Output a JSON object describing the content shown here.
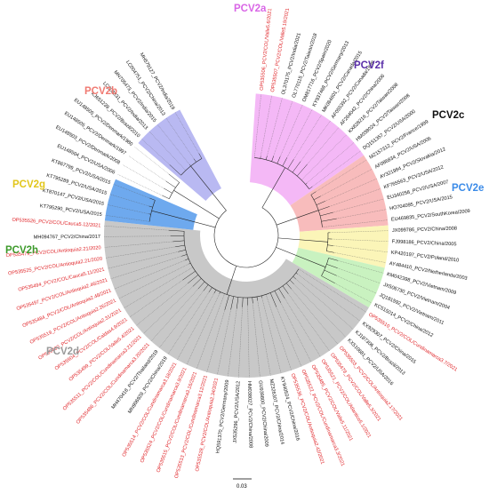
{
  "colors": {
    "PCV2a": "#f4b8f6",
    "PCV2f": "#b9b9f2",
    "PCV2c": "#ffffff",
    "PCV2e": "#6ea9ee",
    "PCV2d": "#c8c8c8",
    "PCV2h": "#c9f2c0",
    "PCV2g": "#fbf5b8",
    "PCV2b": "#f8bcbc",
    "highlight_text": "#e0262a",
    "normal_text": "#111111"
  },
  "clades": [
    {
      "id": "PCV2a",
      "label": "PCV2a",
      "color": "#d966e6"
    },
    {
      "id": "PCV2f",
      "label": "PCV2f",
      "color": "#5a2fa8"
    },
    {
      "id": "PCV2c",
      "label": "PCV2c",
      "color": "#111111"
    },
    {
      "id": "PCV2e",
      "label": "PCV2e",
      "color": "#3b8be8"
    },
    {
      "id": "PCV2d",
      "label": "PCV2d",
      "color": "#9a9a9a"
    },
    {
      "id": "PCV2h",
      "label": "PCV2h",
      "color": "#3c9a2a"
    },
    {
      "id": "PCV2g",
      "label": "PCV2g",
      "color": "#e2c61a"
    },
    {
      "id": "PCV2b",
      "label": "PCV2b",
      "color": "#f07a72"
    }
  ],
  "leaves": [
    {
      "name": "OP535506_PCV2/COL/Valle5.6/2021",
      "clade": "PCV2a",
      "red": true
    },
    {
      "name": "OP535507_PCV2/COL/Valle5.19/2021",
      "clade": "PCV2a",
      "red": true
    },
    {
      "name": "OL370175_PCV2/India/2021",
      "clade": "PCV2a",
      "red": false
    },
    {
      "name": "OL770115_PCV2/Taiwan/2018",
      "clade": "PCV2a",
      "red": false
    },
    {
      "name": "OM817716_PCV2/Spain/2020",
      "clade": "PCV2a",
      "red": false
    },
    {
      "name": "KY937468_PCV2/Germany/2013",
      "clade": "PCV2a",
      "red": false
    },
    {
      "name": "MK084601_PCV2/Canada/2015",
      "clade": "PCV2a",
      "red": false
    },
    {
      "name": "AF055392_PCV2/Canada/1998",
      "clade": "PCV2a",
      "red": false
    },
    {
      "name": "AF264042_PCV2/China/2006",
      "clade": "PCV2a",
      "red": false
    },
    {
      "name": "KX828216_PCV2/Taiwan/2008",
      "clade": "PCV2a",
      "red": false
    },
    {
      "name": "HM038024_PCV2/Taiwan/2008",
      "clade": "PCV2a",
      "red": false
    },
    {
      "name": "DQ151357_PCV2/USA/2000",
      "clade": "PCV2a",
      "red": false
    },
    {
      "name": "MZ157312_PCV2/France/1999",
      "clade": "PCV2b",
      "red": false
    },
    {
      "name": "AF086834_PCV2/USA/2006",
      "clade": "PCV2b",
      "red": false
    },
    {
      "name": "AY321984_PCV2/Slovakia/2012",
      "clade": "PCV2b",
      "red": false
    },
    {
      "name": "KF765563_PCV2/USA/2012",
      "clade": "PCV2b",
      "red": false
    },
    {
      "name": "EU340258_PCV2/USA/2007",
      "clade": "PCV2b",
      "red": false
    },
    {
      "name": "HO704095_PCV2/USA/2015",
      "clade": "PCV2b",
      "red": false
    },
    {
      "name": "EU469835_PCV2/SouthKorea/2009",
      "clade": "PCV2b",
      "red": false
    },
    {
      "name": "JX099786_PCV2/China/2008",
      "clade": "PCV2g",
      "red": false
    },
    {
      "name": "FJ998186_PCV2/China/2005",
      "clade": "PCV2g",
      "red": false
    },
    {
      "name": "KP420197_PCV2/Poland/2010",
      "clade": "PCV2g",
      "red": false
    },
    {
      "name": "AY484410_PCV2/Netherlands/2003",
      "clade": "PCV2g",
      "red": false
    },
    {
      "name": "KM042398_PCV2/Vietnam/2009",
      "clade": "PCV2h",
      "red": false
    },
    {
      "name": "JX506730_PCV2/Vietnam/2004",
      "clade": "PCV2h",
      "red": false
    },
    {
      "name": "JQ181592_PCV2/Vietnam/2011",
      "clade": "PCV2h",
      "red": false
    },
    {
      "name": "KC515014_PCV2/China/2012",
      "clade": "PCV2h",
      "red": false
    },
    {
      "name": "OP535510_PCV2/COL/Cundinamarca3.7/2021",
      "clade": "PCV2d",
      "red": true
    },
    {
      "name": "KX929307_PCV2/China/2015",
      "clade": "PCV2d",
      "red": false
    },
    {
      "name": "KJ187306_PCV2/Brazil/2013",
      "clade": "PCV2d",
      "red": false
    },
    {
      "name": "KX510681_PCV2/USA/2016",
      "clade": "PCV2d",
      "red": false
    },
    {
      "name": "OP535503_PCV2/COL/Antioquia2.17/2021",
      "clade": "PCV2d",
      "red": true
    },
    {
      "name": "OP535478_PCV2/COL/Valle5.3/2021",
      "clade": "PCV2d",
      "red": true
    },
    {
      "name": "OP535521_PCV2/COL/Atlantico5.1/2021",
      "clade": "PCV2d",
      "red": true
    },
    {
      "name": "OP535485_PCV2/COL/Valle5.11/2021",
      "clade": "PCV2d",
      "red": true
    },
    {
      "name": "OP535522_PCV2/COL/Cundinamarca3.3/2021",
      "clade": "PCV2d",
      "red": true
    },
    {
      "name": "OP535536_PCV2/COL/Antioquia2.42/2021",
      "clade": "PCV2d",
      "red": true
    },
    {
      "name": "KY940524_PCV2/China/2016",
      "clade": "PCV2d",
      "red": false
    },
    {
      "name": "MZ326307_PCV2/China/2014",
      "clade": "PCV2d",
      "red": false
    },
    {
      "name": "GU939800_PCV2/China/2009",
      "clade": "PCV2d",
      "red": false
    },
    {
      "name": "HM038027_PCV2/China/2008",
      "clade": "PCV2d",
      "red": false
    },
    {
      "name": "JX535296_PCV2/USA/2012",
      "clade": "PCV2d",
      "red": false
    },
    {
      "name": "HQ591370_PCV2/Germany/2009",
      "clade": "PCV2d",
      "red": false
    },
    {
      "name": "OP535528_PCV2/COL/Antioquia2.34/2021",
      "clade": "PCV2d",
      "red": true
    },
    {
      "name": "OP535513_PCV2/COL/Cundinamarca3.12/2021",
      "clade": "PCV2d",
      "red": true
    },
    {
      "name": "OP535515_PCV2/COL/Cundinamarca3.16/2021",
      "clade": "PCV2d",
      "red": true
    },
    {
      "name": "OP535524_PCV2/COL/Cundinamarca3.9/2021",
      "clade": "PCV2d",
      "red": true
    },
    {
      "name": "OP535514_PCV2/COL/Cundinamarca3.18/2021",
      "clade": "PCV2d",
      "red": true
    },
    {
      "name": "MN906928_PCV2/China/2019",
      "clade": "PCV2d",
      "red": false
    },
    {
      "name": "MH470418_PCV2/Thailand/2019",
      "clade": "PCV2d",
      "red": false
    },
    {
      "name": "OP535486_PCV2/COL/Cundinamarca3.20/2021",
      "clade": "PCV2d",
      "red": true
    },
    {
      "name": "OP535511_PCV2/COL/Cundinamarca3.21/2021",
      "clade": "PCV2d",
      "red": true
    },
    {
      "name": "OP535499_PCV2/COL/Valle5.4/2021",
      "clade": "PCV2d",
      "red": true
    },
    {
      "name": "OP535504_PCV2/COL/Caldas4.9/2021",
      "clade": "PCV2d",
      "red": true
    },
    {
      "name": "OP535480_PCV2/COL/Antioquia2.31/2021",
      "clade": "PCV2d",
      "red": true
    },
    {
      "name": "OP535519_PCV2/COL/Antioquia2.26/2021",
      "clade": "PCV2d",
      "red": true
    },
    {
      "name": "OP535484_PCV2/COL/Antioquia2.48/2021",
      "clade": "PCV2d",
      "red": true
    },
    {
      "name": "OP535497_PCV2/COL/Antioquia2.46/2021",
      "clade": "PCV2d",
      "red": true
    },
    {
      "name": "OP535494_PCV2/COL/Cauca5.11/2021",
      "clade": "PCV2d",
      "red": true
    },
    {
      "name": "OP535525_PCV2/COL/Antioquia2.21/2020",
      "clade": "PCV2d",
      "red": true
    },
    {
      "name": "OP535479_PCV2/COL/Antioquia2.21/2020",
      "clade": "PCV2d",
      "red": true
    },
    {
      "name": "MH094767_PCV2/China/2017",
      "clade": "PCV2d",
      "red": false
    },
    {
      "name": "OP535526_PCV2/COL/Cauca5.12/2021",
      "clade": "PCV2d",
      "red": true
    },
    {
      "name": "KT795290_PCV2/USA/2015",
      "clade": "PCV2e",
      "red": false
    },
    {
      "name": "KT870147_PCV2/USA/2015",
      "clade": "PCV2e",
      "red": false
    },
    {
      "name": "KT795289_PCV2/USA/2015",
      "clade": "PCV2e",
      "red": false
    },
    {
      "name": "KT867799_PCV2/USA/2015",
      "clade": "PCV2e",
      "red": false
    },
    {
      "name": "EU148504_PCV2/USA/2006",
      "clade": "PCV2c",
      "red": false
    },
    {
      "name": "EU148503_PCV2/Denmark/2008",
      "clade": "PCV2c",
      "red": false
    },
    {
      "name": "EU148505_PCV2/Denmark/1997",
      "clade": "PCV2c",
      "red": false
    },
    {
      "name": "EU148505_PCV2/Denmark/1980",
      "clade": "PCV2c",
      "red": false
    },
    {
      "name": "KJ651239_PCV2/Brazil/2010",
      "clade": "PCV2f",
      "red": false
    },
    {
      "name": "LC008831_PCV2/India/2013",
      "clade": "PCV2f",
      "red": false
    },
    {
      "name": "MN705473_PCV2/India/2015",
      "clade": "PCV2f",
      "red": false
    },
    {
      "name": "LC004751_PCV2/China/2013",
      "clade": "PCV2f",
      "red": false
    },
    {
      "name": "MH579127_PCV2/India/2019",
      "clade": "PCV2f",
      "red": false
    }
  ],
  "scale_bar": {
    "label": "0.03",
    "value": 0.03
  }
}
